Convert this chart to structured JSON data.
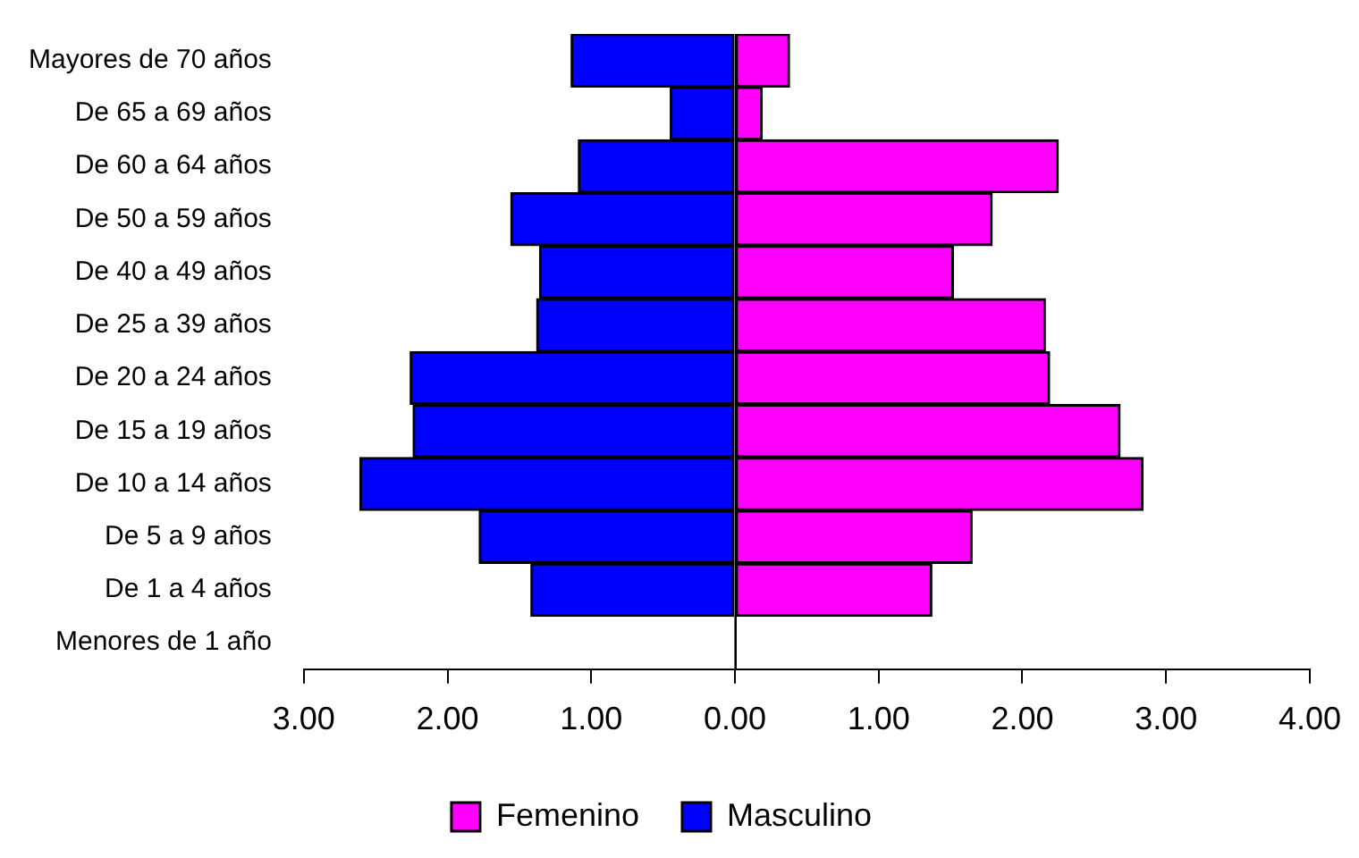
{
  "chart_data": {
    "type": "bar",
    "orientation": "horizontal",
    "stacked": true,
    "categories": [
      "Mayores de 70 años",
      "De 65 a 69 años",
      "De 60 a 64 años",
      "De 50 a 59 años",
      "De 40 a 49 años",
      "De 25 a 39 años",
      "De 20 a 24 años",
      "De 15 a 19 años",
      "De 10 a 14 años",
      "De 5 a 9 años",
      "De 1 a 4 años",
      "Menores de 1 año"
    ],
    "series": [
      {
        "name": "Femenino",
        "color": "#ff00ff",
        "values": [
          0.38,
          0.19,
          2.25,
          1.79,
          1.52,
          2.16,
          2.19,
          2.68,
          2.84,
          1.65,
          1.37,
          0
        ]
      },
      {
        "name": "Masculino",
        "color": "#0000ff",
        "values": [
          -1.14,
          -0.45,
          -1.09,
          -1.56,
          -1.36,
          -1.38,
          -2.26,
          -2.24,
          -2.61,
          -1.78,
          -1.42,
          0
        ]
      }
    ],
    "xlim": [
      -3,
      4
    ],
    "xticks": [
      {
        "value": -3,
        "label": "3.00"
      },
      {
        "value": -2,
        "label": "2.00"
      },
      {
        "value": -1,
        "label": "1.00"
      },
      {
        "value": 0,
        "label": "0.00"
      },
      {
        "value": 1,
        "label": "1.00"
      },
      {
        "value": 2,
        "label": "2.00"
      },
      {
        "value": 3,
        "label": "3.00"
      },
      {
        "value": 4,
        "label": "4.00"
      }
    ],
    "legend": "bottom"
  }
}
